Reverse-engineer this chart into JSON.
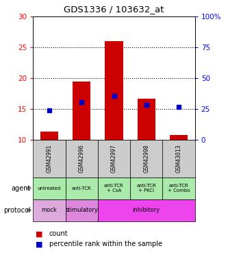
{
  "title": "GDS1336 / 103632_at",
  "samples": [
    "GSM42991",
    "GSM42996",
    "GSM42997",
    "GSM42998",
    "GSM43013"
  ],
  "count_values": [
    11.4,
    19.5,
    26.0,
    16.7,
    10.8
  ],
  "count_base": 10.0,
  "percentile_values": [
    14.8,
    16.1,
    17.2,
    15.7,
    15.4
  ],
  "left_ylim": [
    10,
    30
  ],
  "right_ylim": [
    0,
    100
  ],
  "left_yticks": [
    10,
    15,
    20,
    25,
    30
  ],
  "right_yticks": [
    0,
    25,
    50,
    75,
    100
  ],
  "right_yticklabels": [
    "0",
    "25",
    "50",
    "75",
    "100%"
  ],
  "dotted_lines": [
    15,
    20,
    25
  ],
  "bar_color": "#cc0000",
  "percentile_color": "#0000cc",
  "agent_labels": [
    "untreated",
    "anti-TCR",
    "anti-TCR\n+ CsA",
    "anti-TCR\n+ PKCi",
    "anti-TCR\n+ Combo"
  ],
  "agent_bg": "#aaeaaa",
  "sample_bg": "#cccccc",
  "proto_mock_bg": "#ddaadd",
  "proto_stimulatory_bg": "#dd88dd",
  "proto_inhibitory_bg": "#ee44ee",
  "agent_row_label": "agent",
  "protocol_row_label": "protocol",
  "legend_count_label": "count",
  "legend_percentile_label": "percentile rank within the sample"
}
